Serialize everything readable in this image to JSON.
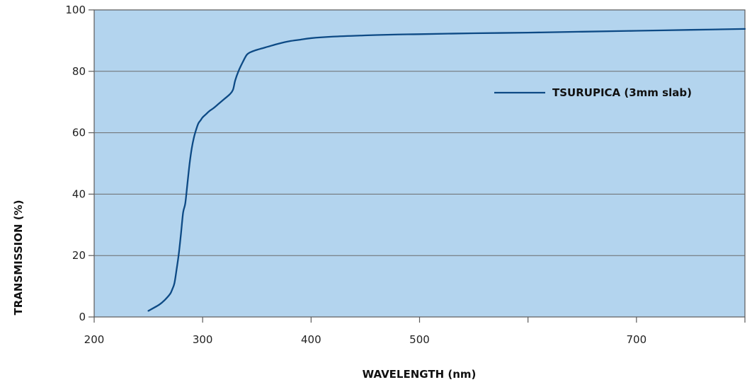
{
  "chart_data": {
    "type": "line",
    "title": "",
    "xlabel": "WAVELENGTH (nm)",
    "ylabel": "TRANSMISSION (%)",
    "xlim": [
      200,
      800
    ],
    "ylim": [
      0,
      100
    ],
    "x_ticks": [
      200,
      300,
      400,
      500,
      600,
      700,
      800
    ],
    "x_tick_labels": [
      "200",
      "300",
      "400",
      "500",
      "",
      "700",
      ""
    ],
    "y_ticks": [
      0,
      20,
      40,
      60,
      80,
      100
    ],
    "y_tick_labels": [
      "0",
      "20",
      "40",
      "60",
      "80",
      "100"
    ],
    "grid": "horizontal",
    "legend_position": "top-right",
    "plot_background": "#b3d4ee",
    "series": [
      {
        "name": "TSURUPICA (3mm slab)",
        "color": "#0d4a85",
        "x": [
          250,
          260,
          265,
          270,
          272,
          274,
          276,
          278,
          280,
          282,
          284,
          286,
          288,
          290,
          292,
          294,
          296,
          298,
          300,
          303,
          306,
          310,
          315,
          320,
          325,
          328,
          330,
          333,
          337,
          341,
          346,
          352,
          360,
          370,
          380,
          390,
          400,
          420,
          450,
          480,
          500,
          550,
          600,
          650,
          700,
          750,
          800
        ],
        "y": [
          2,
          4,
          5.5,
          7.5,
          9,
          11,
          15.5,
          20.5,
          27,
          34,
          37,
          43.5,
          50,
          55,
          58.5,
          61,
          63,
          64,
          65,
          66,
          67,
          68,
          69.5,
          71,
          72.5,
          74,
          77,
          80,
          83,
          85.5,
          86.5,
          87.2,
          88,
          89,
          89.8,
          90.3,
          90.8,
          91.3,
          91.7,
          92,
          92.1,
          92.4,
          92.6,
          92.9,
          93.2,
          93.5,
          93.8
        ]
      }
    ]
  }
}
